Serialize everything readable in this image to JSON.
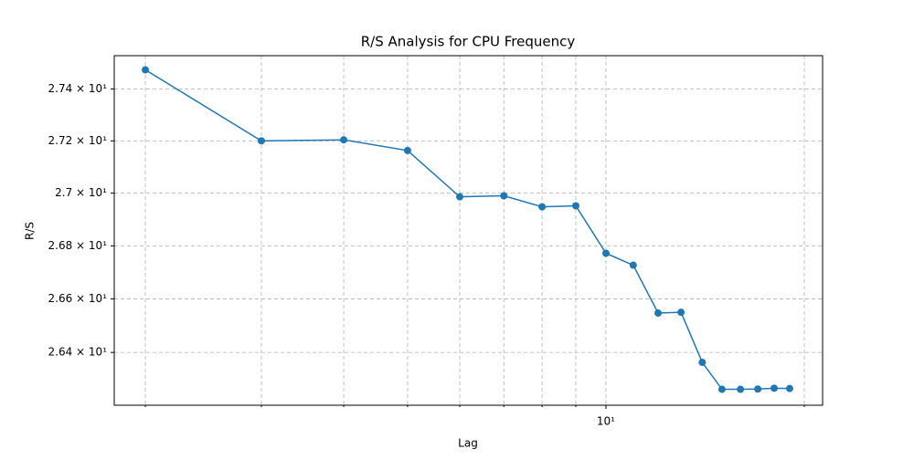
{
  "chart_data": {
    "type": "line",
    "title": "R/S Analysis for CPU Frequency",
    "xlabel": "Lag",
    "ylabel": "R/S",
    "x": [
      2,
      3,
      4,
      5,
      6,
      7,
      8,
      9,
      10,
      11,
      12,
      13,
      14,
      15,
      16,
      17,
      18,
      19
    ],
    "series": [
      {
        "name": "R/S",
        "color": "#1f77b4",
        "values": [
          27.474,
          27.2,
          27.204,
          27.163,
          26.986,
          26.99,
          26.948,
          26.952,
          26.772,
          26.727,
          26.547,
          26.55,
          26.363,
          26.263,
          26.263,
          26.264,
          26.267,
          26.266
        ]
      }
    ],
    "xlog": true,
    "ylog": true,
    "grid": true,
    "marker": "o",
    "xlim": [
      1.794,
      21.32
    ],
    "ylim": [
      26.204,
      27.529
    ],
    "xticks": [
      {
        "value": 10,
        "label": "10¹"
      }
    ],
    "xminorticks": [
      2,
      3,
      4,
      5,
      6,
      7,
      8,
      9,
      20
    ],
    "yticks": [
      {
        "value": 26.4,
        "label": "2.64 × 10¹"
      },
      {
        "value": 26.6,
        "label": "2.66 × 10¹"
      },
      {
        "value": 26.8,
        "label": "2.68 × 10¹"
      },
      {
        "value": 27.0,
        "label": "2.7 × 10¹"
      },
      {
        "value": 27.2,
        "label": "2.72 × 10¹"
      },
      {
        "value": 27.4,
        "label": "2.74 × 10¹"
      }
    ]
  }
}
